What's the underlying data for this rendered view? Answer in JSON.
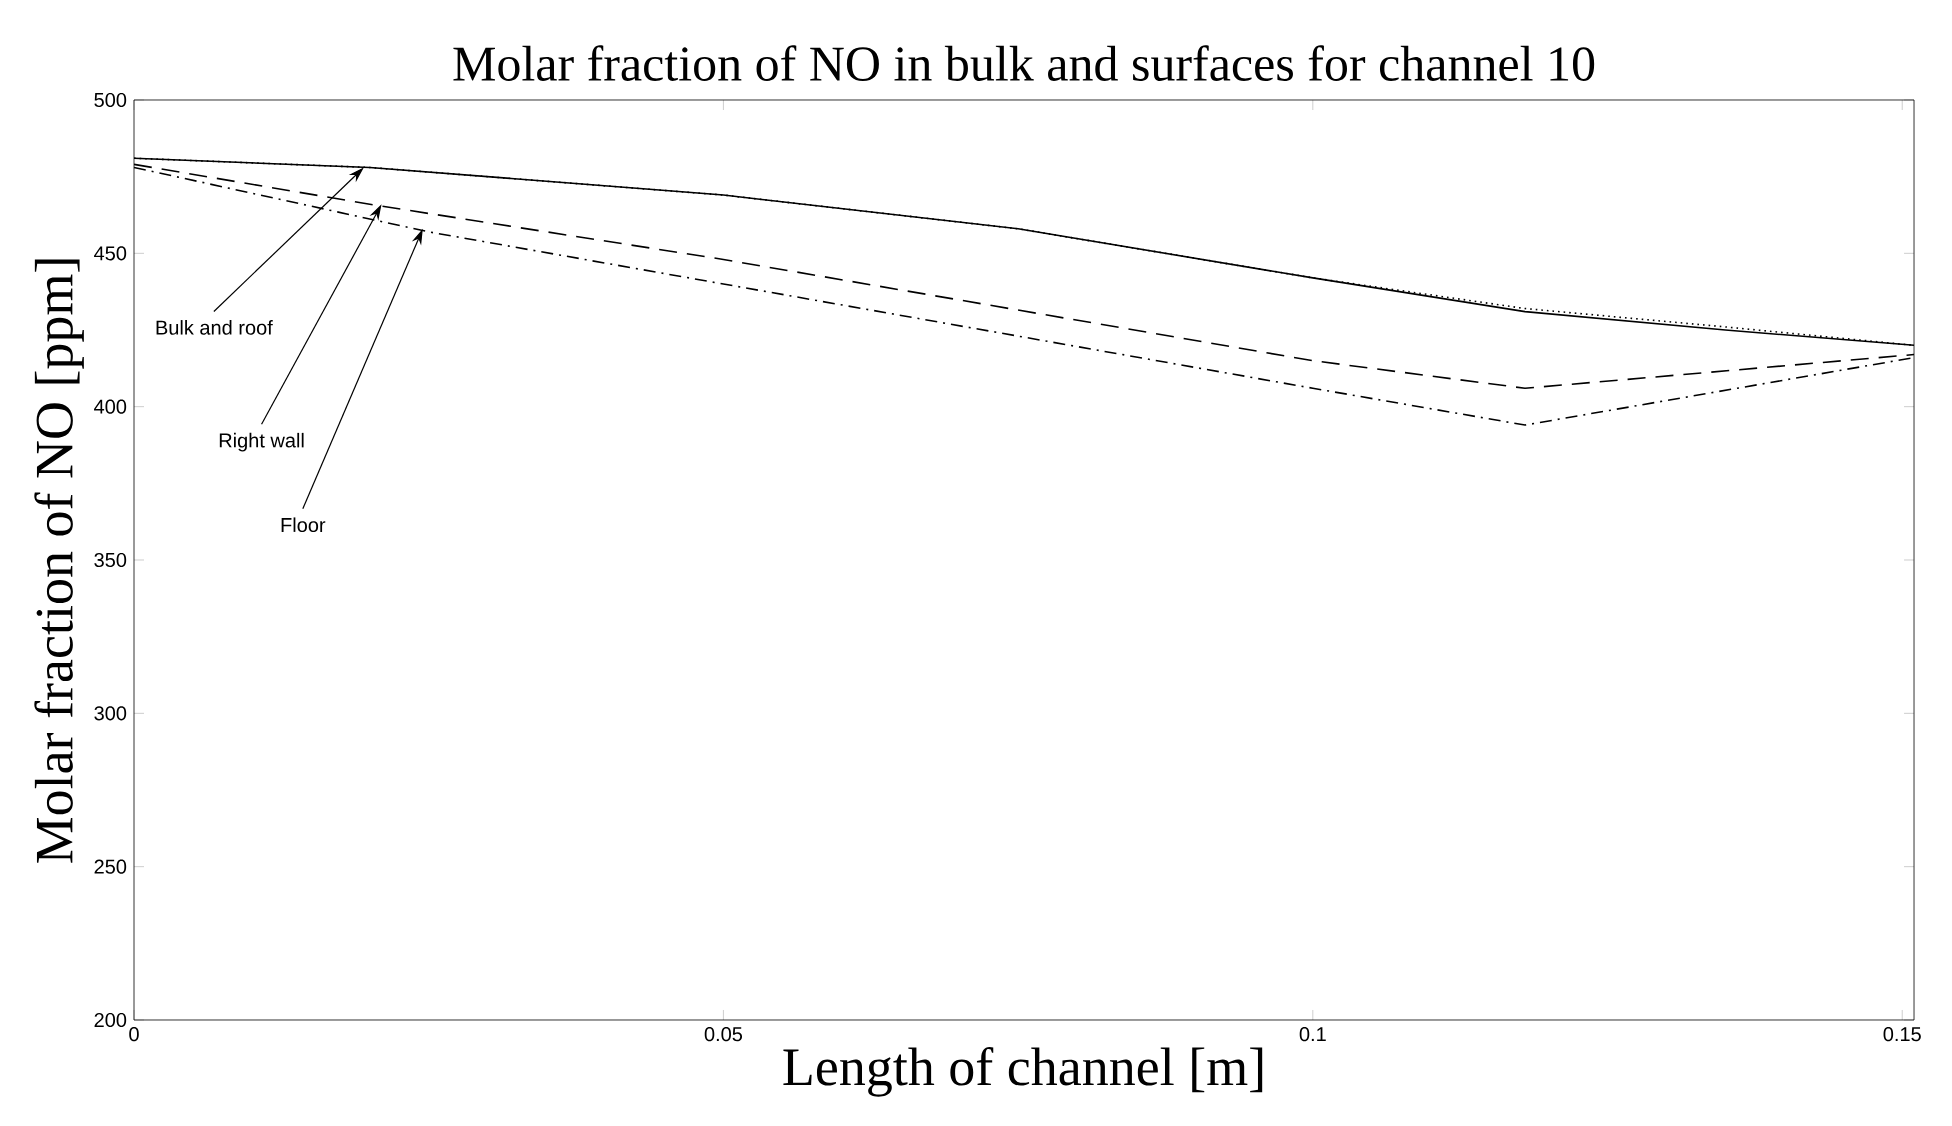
{
  "chart_data": {
    "type": "line",
    "title": "Molar fraction of NO in bulk and surfaces for channel 10",
    "xlabel": "Length of channel [m]",
    "ylabel": "Molar fraction of NO [ppm]",
    "xlim": [
      0,
      0.151
    ],
    "ylim": [
      200,
      500
    ],
    "xticks": [
      0,
      0.05,
      0.1,
      0.15
    ],
    "yticks": [
      200,
      250,
      300,
      350,
      400,
      450,
      500
    ],
    "grid": false,
    "series": [
      {
        "color": "#000000",
        "line_style": "solid",
        "x": [
          0,
          0.02,
          0.05,
          0.075,
          0.1,
          0.118,
          0.135,
          0.151
        ],
        "values": [
          481,
          478,
          469,
          458,
          442,
          431,
          425,
          420
        ]
      },
      {
        "color": "#000000",
        "line_style": "dotted",
        "x": [
          0,
          0.02,
          0.05,
          0.075,
          0.1,
          0.118,
          0.135,
          0.151
        ],
        "values": [
          481,
          478,
          469,
          458,
          442,
          432,
          426,
          420
        ]
      },
      {
        "color": "#000000",
        "line_style": "dashed",
        "x": [
          0,
          0.02,
          0.05,
          0.1,
          0.118,
          0.151
        ],
        "values": [
          479,
          466,
          448,
          415,
          406,
          417
        ]
      },
      {
        "color": "#000000",
        "line_style": "dashdot",
        "x": [
          0,
          0.025,
          0.05,
          0.1,
          0.118,
          0.151
        ],
        "values": [
          478,
          457,
          440,
          406,
          394,
          416
        ]
      }
    ],
    "annotations": [
      {
        "text": "Bulk and roof",
        "x": 0.0195,
        "y": 478
      },
      {
        "text": "Right wall",
        "x": 0.021,
        "y": 466
      },
      {
        "text": "Floor",
        "x": 0.0245,
        "y": 458
      }
    ]
  }
}
